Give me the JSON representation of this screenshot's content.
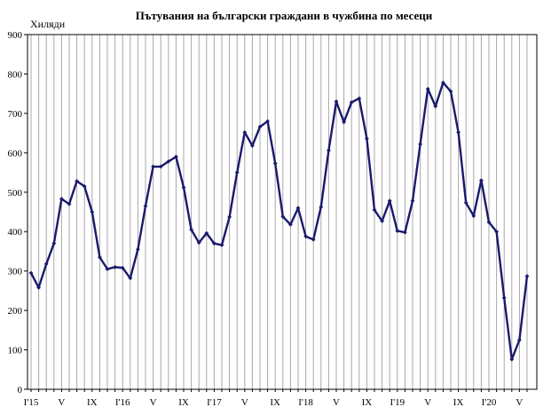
{
  "chart_data": {
    "type": "line",
    "title": "Пътувания на български граждани в чужбина по месеци",
    "ylabel": "Хиляди",
    "xlabel": "",
    "ylim": [
      0,
      900
    ],
    "yticks": [
      0,
      100,
      200,
      300,
      400,
      500,
      600,
      700,
      800,
      900
    ],
    "grid": "vertical",
    "legend": "none",
    "line_color": "#1a1a6e",
    "x_tick_labels": [
      {
        "index": 0,
        "label": "I'15"
      },
      {
        "index": 4,
        "label": "V"
      },
      {
        "index": 8,
        "label": "IX"
      },
      {
        "index": 12,
        "label": "I'16"
      },
      {
        "index": 16,
        "label": "V"
      },
      {
        "index": 20,
        "label": "IX"
      },
      {
        "index": 24,
        "label": "I'17"
      },
      {
        "index": 28,
        "label": "V"
      },
      {
        "index": 32,
        "label": "IX"
      },
      {
        "index": 36,
        "label": "I'18"
      },
      {
        "index": 40,
        "label": "V"
      },
      {
        "index": 44,
        "label": "IX"
      },
      {
        "index": 48,
        "label": "I'19"
      },
      {
        "index": 52,
        "label": "V"
      },
      {
        "index": 56,
        "label": "IX"
      },
      {
        "index": 60,
        "label": "I'20"
      },
      {
        "index": 64,
        "label": "V"
      }
    ],
    "series": [
      {
        "values": [
          295,
          258,
          318,
          370,
          483,
          470,
          528,
          515,
          450,
          335,
          305,
          310,
          308,
          282,
          355,
          465,
          565,
          565,
          578,
          590,
          512,
          405,
          372,
          396,
          370,
          366,
          437,
          550,
          652,
          618,
          666,
          680,
          573,
          438,
          418,
          460,
          388,
          380,
          463,
          606,
          730,
          678,
          728,
          738,
          636,
          455,
          427,
          478,
          402,
          398,
          478,
          622,
          762,
          718,
          778,
          756,
          652,
          473,
          440,
          530,
          424,
          400,
          232,
          76,
          125,
          287
        ]
      }
    ]
  }
}
